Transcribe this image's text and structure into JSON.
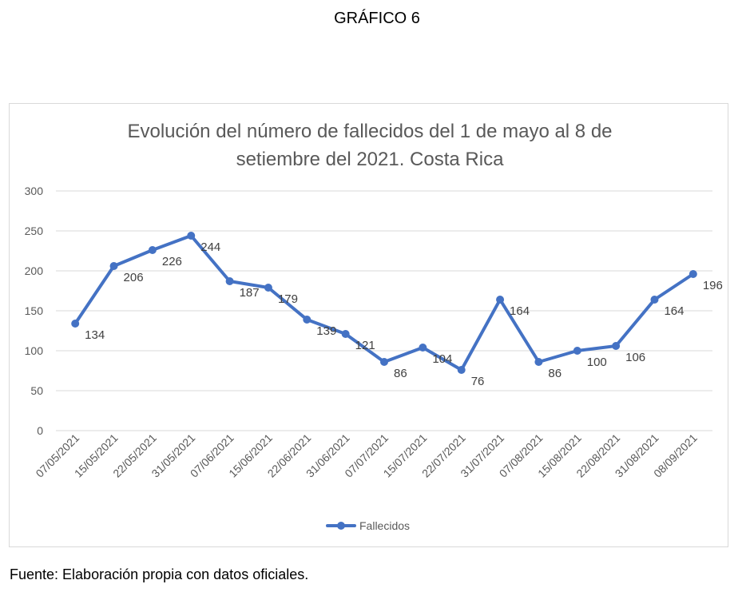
{
  "heading": "GRÁFICO 6",
  "source_note": "Fuente: Elaboración propia con datos oficiales.",
  "colors": {
    "series": "#4472c4",
    "grid": "#d9d9d9",
    "text": "#595959"
  },
  "chart_data": {
    "type": "line",
    "title_lines": [
      "Evolución  del número de fallecidos del 1 de mayo al 8 de",
      "setiembre del 2021. Costa Rica"
    ],
    "xlabel": "",
    "ylabel": "",
    "categories": [
      "07/05/2021",
      "15/05/2021",
      "22/05/2021",
      "31/05/2021",
      "07/06/2021",
      "15/06/2021",
      "22/06/2021",
      "31/06/2021",
      "07/07/2021",
      "15/07/2021",
      "22/07/2021",
      "31/07/2021",
      "07/08/2021",
      "15/08/2021",
      "22/08/2021",
      "31/08/2021",
      "08/09/2021"
    ],
    "series": [
      {
        "name": "Fallecidos",
        "values": [
          134,
          206,
          226,
          244,
          187,
          179,
          139,
          121,
          86,
          104,
          76,
          164,
          86,
          100,
          106,
          164,
          196
        ]
      }
    ],
    "ylim": [
      0,
      300
    ],
    "yticks": [
      0,
      50,
      100,
      150,
      200,
      250,
      300
    ],
    "grid": true,
    "legend": "bottom"
  }
}
